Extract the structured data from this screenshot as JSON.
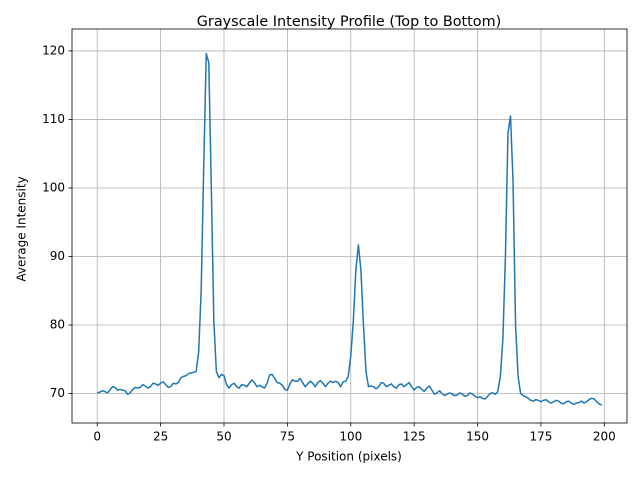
{
  "chart_data": {
    "type": "line",
    "title": "Grayscale Intensity Profile (Top to Bottom)",
    "x_label": "Y Position (pixels)",
    "y_label": "Average Intensity",
    "x": [
      0,
      1,
      2,
      3,
      4,
      5,
      6,
      7,
      8,
      9,
      10,
      11,
      12,
      13,
      14,
      15,
      16,
      17,
      18,
      19,
      20,
      21,
      22,
      23,
      24,
      25,
      26,
      27,
      28,
      29,
      30,
      31,
      32,
      33,
      34,
      35,
      36,
      37,
      38,
      39,
      40,
      41,
      42,
      43,
      44,
      45,
      46,
      47,
      48,
      49,
      50,
      51,
      52,
      53,
      54,
      55,
      56,
      57,
      58,
      59,
      60,
      61,
      62,
      63,
      64,
      65,
      66,
      67,
      68,
      69,
      70,
      71,
      72,
      73,
      74,
      75,
      76,
      77,
      78,
      79,
      80,
      81,
      82,
      83,
      84,
      85,
      86,
      87,
      88,
      89,
      90,
      91,
      92,
      93,
      94,
      95,
      96,
      97,
      98,
      99,
      100,
      101,
      102,
      103,
      104,
      105,
      106,
      107,
      108,
      109,
      110,
      111,
      112,
      113,
      114,
      115,
      116,
      117,
      118,
      119,
      120,
      121,
      122,
      123,
      124,
      125,
      126,
      127,
      128,
      129,
      130,
      131,
      132,
      133,
      134,
      135,
      136,
      137,
      138,
      139,
      140,
      141,
      142,
      143,
      144,
      145,
      146,
      147,
      148,
      149,
      150,
      151,
      152,
      153,
      154,
      155,
      156,
      157,
      158,
      159,
      160,
      161,
      162,
      163,
      164,
      165,
      166,
      167,
      168,
      169,
      170,
      171,
      172,
      173,
      174,
      175,
      176,
      177,
      178,
      179,
      180,
      181,
      182,
      183,
      184,
      185,
      186,
      187,
      188,
      189,
      190,
      191,
      192,
      193,
      194,
      195,
      196,
      197,
      198,
      199
    ],
    "series": [
      {
        "name": "Average Intensity",
        "color": "#1f77b4",
        "values": [
          70.1,
          70.2,
          70.4,
          70.3,
          70.1,
          70.5,
          71.0,
          70.9,
          70.5,
          70.6,
          70.5,
          70.4,
          69.9,
          70.1,
          70.6,
          70.9,
          70.8,
          70.9,
          71.3,
          71.1,
          70.8,
          71.0,
          71.5,
          71.4,
          71.2,
          71.5,
          71.7,
          71.3,
          70.9,
          71.0,
          71.5,
          71.4,
          71.6,
          72.3,
          72.5,
          72.6,
          72.9,
          73.0,
          73.1,
          73.2,
          76.0,
          85.0,
          103.0,
          119.6,
          118.3,
          100.0,
          80.5,
          73.2,
          72.3,
          72.8,
          72.6,
          71.3,
          70.8,
          71.3,
          71.5,
          71.0,
          70.8,
          71.3,
          71.2,
          71.0,
          71.5,
          72.0,
          71.6,
          71.0,
          71.2,
          71.0,
          70.8,
          71.5,
          72.7,
          72.8,
          72.2,
          71.6,
          71.5,
          71.2,
          70.6,
          70.5,
          71.4,
          72.0,
          71.8,
          71.8,
          72.2,
          71.6,
          71.0,
          71.4,
          71.8,
          71.5,
          71.0,
          71.6,
          71.9,
          71.5,
          71.0,
          71.5,
          71.8,
          71.6,
          71.8,
          71.6,
          71.0,
          71.7,
          71.8,
          72.5,
          75.5,
          80.5,
          88.0,
          91.7,
          88.0,
          80.0,
          73.2,
          71.0,
          71.1,
          71.0,
          70.7,
          71.0,
          71.6,
          71.5,
          71.0,
          71.2,
          71.4,
          71.0,
          70.8,
          71.3,
          71.4,
          71.0,
          71.3,
          71.6,
          71.0,
          70.5,
          70.9,
          71.0,
          70.6,
          70.3,
          70.8,
          71.1,
          70.5,
          69.9,
          70.1,
          70.4,
          70.0,
          69.7,
          69.9,
          70.1,
          69.9,
          69.7,
          69.8,
          70.1,
          69.9,
          69.6,
          69.7,
          70.1,
          69.9,
          69.6,
          69.4,
          69.5,
          69.3,
          69.2,
          69.6,
          70.0,
          70.1,
          69.9,
          70.3,
          72.5,
          78.0,
          90.0,
          108.0,
          110.5,
          101.0,
          80.0,
          72.5,
          70.0,
          69.7,
          69.5,
          69.3,
          69.0,
          68.9,
          69.1,
          69.0,
          68.8,
          69.0,
          69.1,
          68.8,
          68.6,
          68.8,
          69.0,
          68.9,
          68.6,
          68.5,
          68.8,
          68.9,
          68.6,
          68.4,
          68.6,
          68.7,
          68.9,
          68.6,
          68.8,
          69.1,
          69.3,
          69.2,
          68.8,
          68.5,
          68.3
        ]
      }
    ],
    "xlim": [
      -9.95,
      208.95
    ],
    "ylim": [
      65.7,
      123.2
    ],
    "xticks": [
      0,
      25,
      50,
      75,
      100,
      125,
      150,
      175,
      200
    ],
    "yticks": [
      70,
      80,
      90,
      100,
      110,
      120
    ],
    "grid": true
  }
}
